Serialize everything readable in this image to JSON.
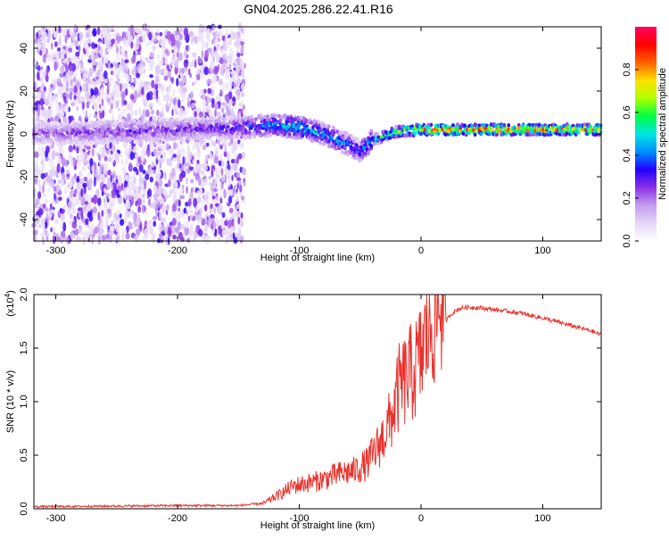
{
  "page_title": "GN04.2025.286.22.41.R16",
  "chart_data": [
    {
      "type": "heatmap",
      "id": "spectrogram",
      "title": "GN04.2025.286.22.41.R16",
      "xlabel": "Height of straight line (km)",
      "ylabel": "Frequency (Hz)",
      "xlim": [
        -318,
        148
      ],
      "ylim": [
        -50,
        50
      ],
      "xticks": [
        -300,
        -200,
        -100,
        0,
        100
      ],
      "yticks": [
        -40,
        -20,
        0,
        20,
        40
      ],
      "colorbar": {
        "label": "Normalized spectral amplitude",
        "range": [
          0,
          1
        ],
        "ticks": [
          0.0,
          0.2,
          0.4,
          0.6,
          0.8
        ],
        "tick_labels": [
          "0.0",
          "0.2",
          "0.4",
          "0.6",
          "0.8"
        ],
        "colormap": [
          "#ffffff",
          "#e6d6f7",
          "#c49df0",
          "#8a30e6",
          "#2200ff",
          "#0090ff",
          "#00e8e0",
          "#00ff40",
          "#b0ff00",
          "#ffe000",
          "#ff6000",
          "#ff0000",
          "#ff0060"
        ]
      },
      "signal_track": {
        "description_points_x": [
          -318,
          -250,
          -200,
          -150,
          -120,
          -100,
          -80,
          -60,
          -50,
          -40,
          -20,
          0,
          50,
          100,
          148
        ],
        "center_freq_hz": [
          0,
          1,
          2,
          3,
          4,
          3,
          0,
          -5,
          -8,
          -3,
          1,
          2,
          2,
          2,
          2
        ],
        "peak_amplitude": [
          0.25,
          0.3,
          0.3,
          0.35,
          0.5,
          0.55,
          0.5,
          0.45,
          0.4,
          0.55,
          0.7,
          0.9,
          0.95,
          0.95,
          0.9
        ]
      },
      "noise_region_x": [
        -318,
        -145
      ]
    },
    {
      "type": "line",
      "id": "snr",
      "xlabel": "Height of straight line (km)",
      "ylabel": "SNR (10 * v/v)",
      "scale_label": "(x10",
      "scale_exp": "4",
      "xlim": [
        -318,
        148
      ],
      "ylim": [
        0,
        2.0
      ],
      "xticks": [
        -300,
        -200,
        -100,
        0,
        100
      ],
      "yticks": [
        0.0,
        0.5,
        1.0,
        1.5,
        2.0
      ],
      "ytick_labels": [
        "0.0",
        "0.5",
        "1.0",
        "1.5",
        "2.0"
      ],
      "color": "#e8322d",
      "series": [
        {
          "name": "SNR",
          "x": [
            -318,
            -250,
            -200,
            -160,
            -150,
            -130,
            -115,
            -105,
            -95,
            -85,
            -75,
            -65,
            -55,
            -45,
            -38,
            -32,
            -25,
            -18,
            -10,
            -5,
            0,
            5,
            10,
            15,
            20,
            25,
            30,
            35,
            45,
            60,
            80,
            100,
            120,
            140,
            148
          ],
          "y": [
            0.01,
            0.015,
            0.02,
            0.02,
            0.02,
            0.04,
            0.12,
            0.18,
            0.2,
            0.22,
            0.25,
            0.28,
            0.3,
            0.35,
            0.45,
            0.55,
            0.7,
            0.95,
            1.05,
            1.1,
            1.2,
            1.4,
            1.5,
            1.62,
            1.75,
            1.82,
            1.86,
            1.88,
            1.88,
            1.86,
            1.83,
            1.78,
            1.72,
            1.66,
            1.62
          ]
        }
      ]
    }
  ]
}
